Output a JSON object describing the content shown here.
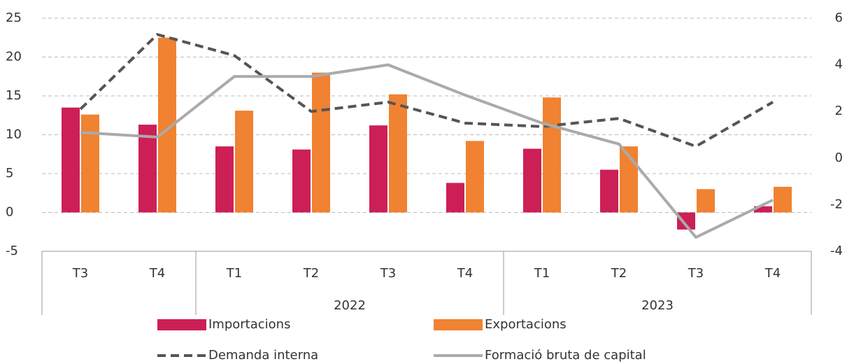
{
  "chart_data": {
    "type": "bar_line",
    "categories": [
      "T3",
      "T4",
      "T1",
      "T2",
      "T3",
      "T4",
      "T1",
      "T2",
      "T3",
      "T4"
    ],
    "groups": [
      null,
      null,
      "2022",
      "2022",
      "2022",
      "2022",
      "2023",
      "2023",
      "2023",
      "2023"
    ],
    "series": [
      {
        "name": "Importacions",
        "type": "bar",
        "color": "#cc1f55",
        "values": [
          13.5,
          11.3,
          8.5,
          8.1,
          11.2,
          3.8,
          8.2,
          5.5,
          -2.2,
          0.8
        ]
      },
      {
        "name": "Exportacions",
        "type": "bar",
        "color": "#f08232",
        "values": [
          12.6,
          22.5,
          13.1,
          18.0,
          15.2,
          9.2,
          14.8,
          8.5,
          3.0,
          3.3
        ]
      },
      {
        "name": "Demanda interna",
        "type": "line",
        "dashed": true,
        "axis": "y2",
        "color": "#555555",
        "values": [
          2.1,
          5.3,
          4.4,
          2.0,
          2.4,
          1.5,
          1.35,
          1.7,
          0.5,
          2.4
        ]
      },
      {
        "name": "Formació bruta de capital",
        "type": "line",
        "dashed": false,
        "axis": "y2",
        "color": "#aaaaaa",
        "values": [
          1.1,
          0.9,
          3.5,
          3.5,
          4.0,
          2.7,
          1.5,
          0.6,
          -3.4,
          -1.8
        ]
      }
    ],
    "ylim": [
      -5,
      25
    ],
    "yticks": [
      -5,
      0,
      5,
      10,
      15,
      20,
      25
    ],
    "y2lim": [
      -4,
      6
    ],
    "y2ticks": [
      -4,
      -2,
      0,
      2,
      4,
      6
    ],
    "grid": true
  }
}
